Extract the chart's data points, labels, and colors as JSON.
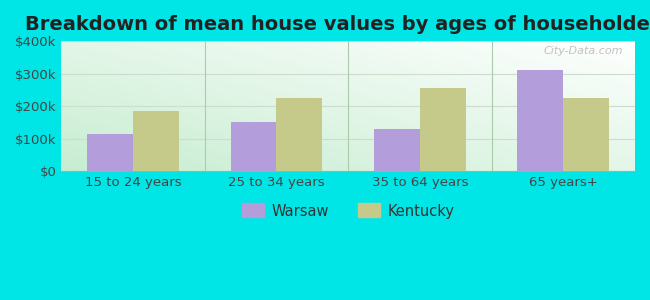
{
  "title": "Breakdown of mean house values by ages of householders",
  "categories": [
    "15 to 24 years",
    "25 to 34 years",
    "35 to 64 years",
    "65 years+"
  ],
  "warsaw_values": [
    115000,
    150000,
    130000,
    310000
  ],
  "kentucky_values": [
    185000,
    225000,
    255000,
    225000
  ],
  "warsaw_color": "#b39ddb",
  "kentucky_color": "#c5c98a",
  "background_color": "#00e5e5",
  "ylim": [
    0,
    400000
  ],
  "yticks": [
    0,
    100000,
    200000,
    300000,
    400000
  ],
  "ytick_labels": [
    "$0",
    "$100k",
    "$200k",
    "$300k",
    "$400k"
  ],
  "bar_width": 0.32,
  "legend_warsaw": "Warsaw",
  "legend_kentucky": "Kentucky",
  "title_fontsize": 14,
  "tick_fontsize": 9.5,
  "legend_fontsize": 10.5,
  "watermark": "City-Data.com",
  "grid_color": "#ccddcc",
  "divider_color": "#aaccaa"
}
